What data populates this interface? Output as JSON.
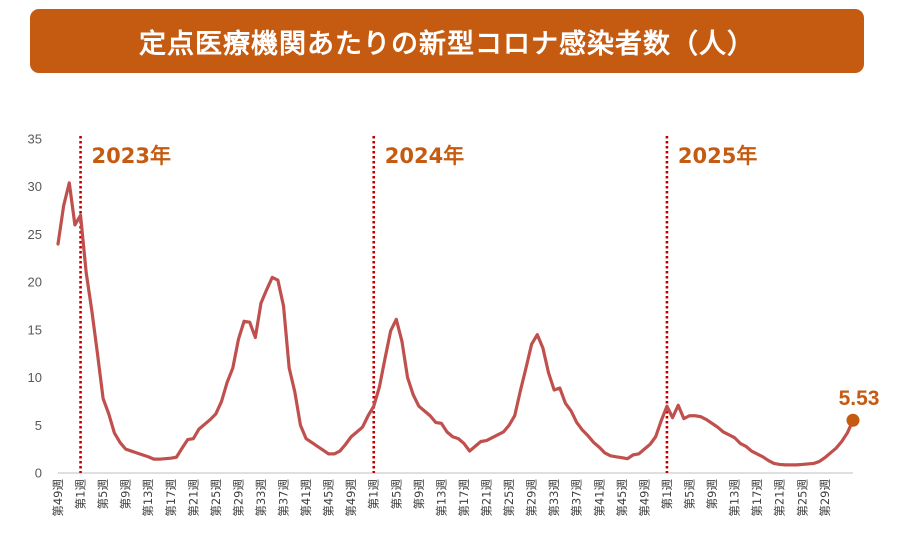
{
  "header": {
    "title": "定点医療機関あたりの新型コロナ感染者数（人）"
  },
  "colors": {
    "title_bg": "#c55a11",
    "line": "#c0504d",
    "marker": "#c55a11",
    "divider": "#c00000",
    "axis": "#bfbfbf"
  },
  "chart_data": {
    "type": "line",
    "title": "定点医療機関あたりの新型コロナ感染者数（人）",
    "xlabel": "",
    "ylabel": "",
    "ylim": [
      0,
      35
    ],
    "yticks": [
      0,
      5,
      10,
      15,
      20,
      25,
      30,
      35
    ],
    "grid": false,
    "xticks": [
      "第49週",
      "第1週",
      "第5週",
      "第9週",
      "第13週",
      "第17週",
      "第21週",
      "第25週",
      "第29週",
      "第33週",
      "第37週",
      "第41週",
      "第45週",
      "第49週",
      "第1週",
      "第5週",
      "第9週",
      "第13週",
      "第17週",
      "第21週",
      "第25週",
      "第29週",
      "第33週",
      "第37週",
      "第41週",
      "第45週",
      "第49週",
      "第1週",
      "第5週",
      "第9週",
      "第13週",
      "第17週",
      "第21週",
      "第25週",
      "第29週"
    ],
    "year_markers": [
      {
        "label": "2023年",
        "at_week_index": 4
      },
      {
        "label": "2024年",
        "at_week_index": 56
      },
      {
        "label": "2025年",
        "at_week_index": 108
      }
    ],
    "last_value_label": "5.53",
    "series": [
      {
        "values": [
          24.0,
          28.0,
          30.4,
          26.0,
          27.0,
          21.0,
          17.0,
          12.5,
          7.8,
          6.2,
          4.2,
          3.2,
          2.5,
          2.3,
          2.1,
          1.9,
          1.7,
          1.45,
          1.45,
          1.5,
          1.55,
          1.65,
          2.6,
          3.5,
          3.6,
          4.6,
          5.1,
          5.6,
          6.2,
          7.5,
          9.5,
          11.0,
          14.0,
          15.9,
          15.8,
          14.2,
          17.8,
          19.2,
          20.5,
          20.2,
          17.5,
          11.0,
          8.5,
          5.0,
          3.6,
          3.2,
          2.8,
          2.4,
          2.0,
          2.0,
          2.3,
          3.0,
          3.8,
          4.3,
          4.8,
          6.0,
          7.0,
          9.0,
          12.0,
          14.9,
          16.1,
          13.8,
          10.0,
          8.2,
          7.0,
          6.5,
          6.0,
          5.3,
          5.2,
          4.3,
          3.8,
          3.6,
          3.1,
          2.3,
          2.8,
          3.3,
          3.4,
          3.7,
          4.0,
          4.3,
          5.0,
          6.0,
          8.6,
          11.0,
          13.5,
          14.5,
          13.1,
          10.5,
          8.7,
          8.9,
          7.3,
          6.5,
          5.3,
          4.5,
          3.9,
          3.2,
          2.7,
          2.1,
          1.8,
          1.7,
          1.6,
          1.5,
          1.9,
          2.0,
          2.5,
          3.0,
          3.8,
          5.5,
          7.0,
          5.8,
          7.1,
          5.7,
          6.0,
          6.0,
          5.9,
          5.6,
          5.2,
          4.8,
          4.3,
          4.0,
          3.7,
          3.1,
          2.8,
          2.3,
          2.0,
          1.7,
          1.3,
          1.0,
          0.9,
          0.85,
          0.85,
          0.85,
          0.9,
          0.95,
          1.0,
          1.2,
          1.6,
          2.1,
          2.6,
          3.3,
          4.2,
          5.53
        ]
      }
    ]
  }
}
